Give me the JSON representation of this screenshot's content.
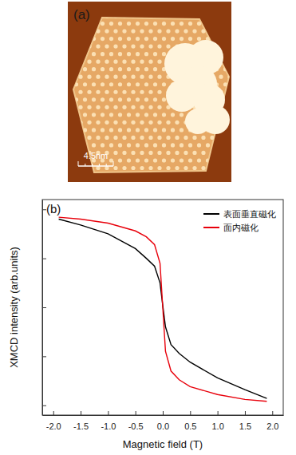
{
  "figure": {
    "panel_a": {
      "label": "(a)",
      "scale_bar": "4.5nm"
    }
  },
  "chart_data": {
    "type": "line",
    "panel_label": "(b)",
    "x_label": "Magnetic field (T)",
    "y_label": "XMCD intensity (arb.units)",
    "x": [
      -1.9,
      -1.5,
      -1.0,
      -0.5,
      -0.3,
      -0.15,
      -0.05,
      0,
      0.05,
      0.15,
      0.3,
      0.5,
      1.0,
      1.5,
      1.9
    ],
    "series": [
      {
        "name": "表面垂直磁化",
        "color": "#000000",
        "values": [
          0.9,
          0.84,
          0.75,
          0.6,
          0.5,
          0.42,
          0.25,
          0.02,
          -0.2,
          -0.38,
          -0.47,
          -0.56,
          -0.72,
          -0.84,
          -0.93
        ]
      },
      {
        "name": "面内磁化",
        "color": "#e8000b",
        "values": [
          0.92,
          0.9,
          0.86,
          0.78,
          0.72,
          0.64,
          0.45,
          0.0,
          -0.45,
          -0.65,
          -0.74,
          -0.81,
          -0.89,
          -0.94,
          -0.96
        ]
      }
    ],
    "xlim": [
      -2.2,
      2.2
    ],
    "xticks": [
      {
        "value": -2,
        "label": "-2.0"
      },
      -1.5,
      {
        "value": -1,
        "label": "-1.0"
      },
      -0.5,
      {
        "value": 0,
        "label": "0.0"
      },
      0.5,
      {
        "value": 1,
        "label": "1.0"
      },
      1.5,
      {
        "value": 2,
        "label": "2.0"
      }
    ],
    "ylim": [
      -1.1,
      1.1
    ],
    "yticks": [
      -1,
      -0.5,
      0,
      0.5,
      1
    ],
    "tick_labels": "x",
    "grid": false,
    "legend": "upper right"
  }
}
